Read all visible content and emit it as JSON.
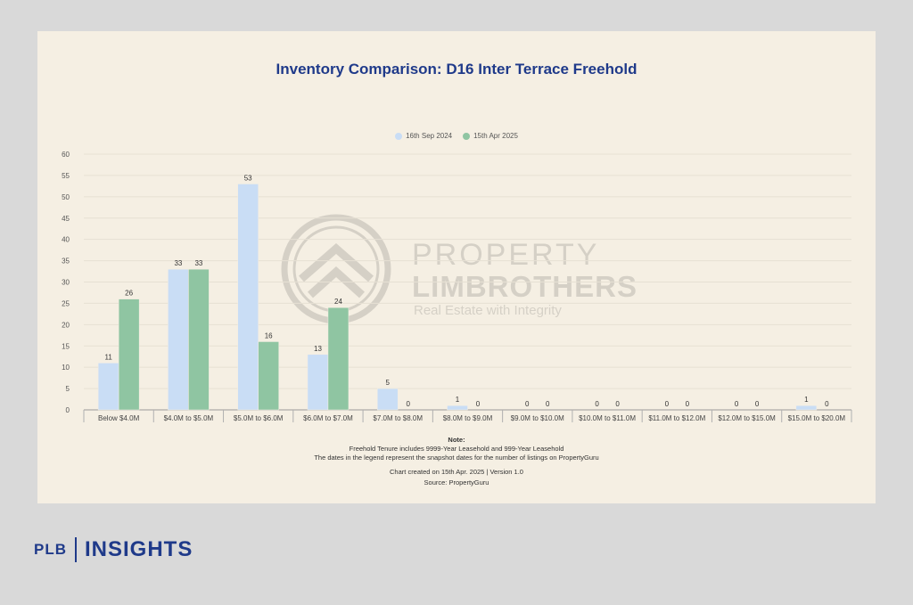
{
  "chart_data": {
    "type": "bar",
    "title": "Inventory Comparison: D16 Inter Terrace Freehold",
    "categories": [
      "Below $4.0M",
      "$4.0M to $5.0M",
      "$5.0M to $6.0M",
      "$6.0M to $7.0M",
      "$7.0M to $8.0M",
      "$8.0M to $9.0M",
      "$9.0M to $10.0M",
      "$10.0M to $11.0M",
      "$11.0M to $12.0M",
      "$12.0M to $15.0M",
      "$15.0M to $20.0M"
    ],
    "series": [
      {
        "name": "16th Sep 2024",
        "color": "#c9ddf5",
        "values": [
          11,
          33,
          53,
          13,
          5,
          1,
          0,
          0,
          0,
          0,
          1
        ]
      },
      {
        "name": "15th Apr 2025",
        "color": "#8fc5a2",
        "values": [
          26,
          33,
          16,
          24,
          0,
          0,
          0,
          0,
          0,
          0,
          0
        ]
      }
    ],
    "ylim": [
      0,
      60
    ],
    "yticks": [
      0,
      5,
      10,
      15,
      20,
      25,
      30,
      35,
      40,
      45,
      50,
      55,
      60
    ],
    "grid": true,
    "legend_position": "top-center",
    "xlabel": "",
    "ylabel": ""
  },
  "notes": {
    "title": "Note:",
    "line1": "Freehold Tenure includes 9999-Year Leasehold and 999-Year Leasehold",
    "line2": "The dates in the legend represent the snapshot dates for the number of listings on PropertyGuru",
    "created": "Chart created on 15th Apr. 2025 | Version 1.0",
    "source": "Source: PropertyGuru"
  },
  "watermark": {
    "line1": "PROPERTY",
    "line2": "LIMBROTHERS",
    "line3": "Real Estate with Integrity"
  },
  "brand": {
    "left": "PLB",
    "right": "INSIGHTS"
  }
}
